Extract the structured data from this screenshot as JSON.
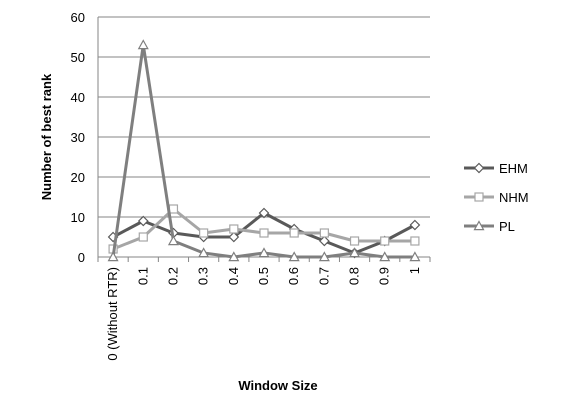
{
  "chart_data": {
    "type": "line",
    "categories": [
      "0 (Without RTR)",
      "0.1",
      "0.2",
      "0.3",
      "0.4",
      "0.5",
      "0.6",
      "0.7",
      "0.8",
      "0.9",
      "1"
    ],
    "series": [
      {
        "name": "EHM",
        "values": [
          5,
          9,
          6,
          5,
          5,
          11,
          7,
          4,
          1,
          4,
          8
        ],
        "color": "#595959",
        "marker": "diamond"
      },
      {
        "name": "NHM",
        "values": [
          2,
          5,
          12,
          6,
          7,
          6,
          6,
          6,
          4,
          4,
          4
        ],
        "color": "#a6a6a6",
        "marker": "square"
      },
      {
        "name": "PL",
        "values": [
          0,
          53,
          4,
          1,
          0,
          1,
          0,
          0,
          1,
          0,
          0
        ],
        "color": "#7f7f7f",
        "marker": "triangle"
      }
    ],
    "title": "",
    "xlabel": "Window Size",
    "ylabel": "Number of best rank",
    "ylim": [
      0,
      60
    ],
    "yticks": [
      0,
      10,
      20,
      30,
      40,
      50,
      60
    ],
    "grid": "horizontal",
    "legend": "right"
  }
}
